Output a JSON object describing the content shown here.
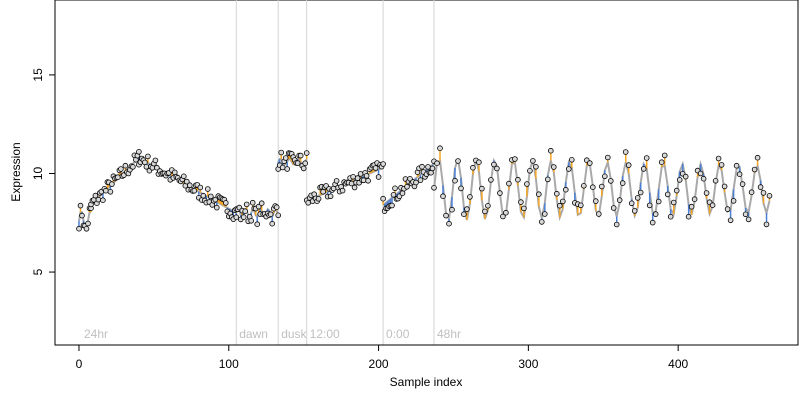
{
  "chart_data": {
    "type": "line",
    "title": "",
    "xlabel": "Sample index",
    "ylabel": "Expression",
    "xlim": [
      -16,
      480
    ],
    "ylim": [
      1.3,
      18.8
    ],
    "x_ticks": [
      0,
      100,
      200,
      300,
      400
    ],
    "y_ticks": [
      5,
      10,
      15
    ],
    "grid": false,
    "legend": "none",
    "vertical_markers": [
      {
        "x": 105,
        "label": "dawn"
      },
      {
        "x": 133,
        "label": "dusk"
      },
      {
        "x": 152,
        "label": "12:00"
      },
      {
        "x": 203,
        "label": "0:00"
      },
      {
        "x": 237,
        "label": "48hr"
      }
    ],
    "corner_label": "24hr",
    "colors": {
      "fit_line": "#a9a9a9",
      "marker_line": "#d3d3d3",
      "residual_positive": "#f5a623",
      "residual_negative": "#4a7fd6",
      "point_fill": "#d9d9d9",
      "point_stroke": "#000000",
      "annotation": "#bfbfbf"
    },
    "segments": [
      {
        "name": "segment-1",
        "x_start": 0,
        "x_end": 8,
        "type": "noisy",
        "mean": 7.6,
        "amp": 0.5,
        "period": 6,
        "x_step": 1
      },
      {
        "name": "segment-2",
        "x_start": 8,
        "x_end": 40,
        "type": "rise",
        "from": 8.4,
        "to": 10.8,
        "x_step": 1
      },
      {
        "name": "segment-3",
        "x_start": 40,
        "x_end": 105,
        "type": "fall",
        "from": 10.8,
        "to": 8.0,
        "x_step": 1
      },
      {
        "name": "segment-4",
        "x_start": 105,
        "x_end": 133,
        "type": "flat",
        "mean": 8.0,
        "amp": 0.2,
        "period": 5,
        "x_step": 1
      },
      {
        "name": "segment-5",
        "x_start": 133,
        "x_end": 152,
        "type": "flat",
        "mean": 10.6,
        "amp": 0.15,
        "period": 6,
        "x_step": 1
      },
      {
        "name": "segment-6",
        "x_start": 152,
        "x_end": 203,
        "type": "rise",
        "from": 8.6,
        "to": 10.3,
        "x_step": 1
      },
      {
        "name": "segment-7",
        "x_start": 203,
        "x_end": 237,
        "type": "rise",
        "from": 8.4,
        "to": 10.5,
        "x_step": 1
      },
      {
        "name": "segment-8",
        "x_start": 237,
        "x_end": 462,
        "type": "oscillating",
        "mean": 9.2,
        "amp_start": 1.6,
        "amp_end": 1.2,
        "period": 12.5,
        "x_step": 2
      }
    ]
  }
}
